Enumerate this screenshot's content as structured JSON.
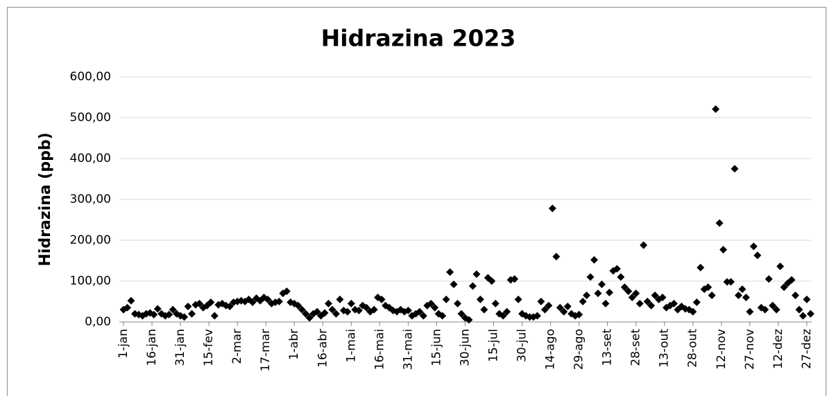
{
  "chart_data": {
    "type": "scatter",
    "title": "Hidrazina 2023",
    "y_label": "Hidrazina (ppb)",
    "color": "#000000",
    "grid": true,
    "x": [
      1,
      3,
      5,
      7,
      9,
      11,
      13,
      15,
      17,
      19,
      21,
      23,
      25,
      27,
      29,
      31,
      33,
      35,
      37,
      39,
      41,
      43,
      45,
      47,
      49,
      51,
      53,
      55,
      57,
      59,
      61,
      63,
      65,
      67,
      69,
      71,
      73,
      75,
      77,
      79,
      81,
      83,
      85,
      87,
      89,
      91,
      93,
      95,
      97,
      99,
      101,
      103,
      105,
      107,
      109,
      111,
      113,
      115,
      117,
      119,
      121,
      123,
      125,
      127,
      129,
      131,
      133,
      135,
      137,
      139,
      141,
      143,
      145,
      147,
      149,
      151,
      153,
      155,
      157,
      159,
      161,
      163,
      165,
      167,
      169,
      171,
      173,
      175,
      177,
      179,
      181,
      183,
      185,
      187,
      189,
      191,
      193,
      195,
      197,
      199,
      201,
      203,
      205,
      207,
      209,
      211,
      213,
      215,
      217,
      219,
      221,
      223,
      225,
      227,
      229,
      231,
      233,
      235,
      237,
      239,
      241,
      243,
      245,
      247,
      249,
      251,
      253,
      255,
      257,
      259,
      261,
      263,
      265,
      267,
      269,
      271,
      273,
      275,
      277,
      279,
      281,
      283,
      285,
      287,
      289,
      291,
      293,
      295,
      297,
      299,
      301,
      303,
      305,
      307,
      309,
      311,
      313,
      315,
      317,
      319,
      321,
      323,
      325,
      327,
      329,
      331,
      333,
      335,
      337,
      339,
      341,
      343,
      345,
      347,
      349,
      351,
      353,
      355,
      357,
      359,
      361,
      363
    ],
    "values": [
      30,
      35,
      52,
      20,
      18,
      15,
      20,
      22,
      18,
      32,
      20,
      15,
      18,
      30,
      20,
      15,
      12,
      38,
      20,
      42,
      45,
      35,
      40,
      48,
      15,
      42,
      45,
      40,
      38,
      48,
      50,
      52,
      50,
      55,
      48,
      58,
      52,
      60,
      55,
      45,
      48,
      50,
      70,
      75,
      48,
      45,
      40,
      30,
      20,
      10,
      20,
      25,
      15,
      22,
      45,
      30,
      20,
      55,
      28,
      25,
      45,
      30,
      28,
      40,
      35,
      25,
      30,
      60,
      55,
      40,
      35,
      28,
      25,
      30,
      25,
      28,
      15,
      20,
      25,
      15,
      40,
      45,
      35,
      20,
      15,
      55,
      122,
      92,
      45,
      20,
      10,
      5,
      88,
      117,
      55,
      30,
      108,
      100,
      45,
      20,
      15,
      25,
      103,
      105,
      55,
      20,
      15,
      12,
      12,
      15,
      50,
      30,
      40,
      278,
      160,
      35,
      25,
      38,
      20,
      15,
      18,
      50,
      65,
      110,
      152,
      70,
      92,
      45,
      72,
      125,
      130,
      110,
      85,
      75,
      60,
      70,
      45,
      188,
      50,
      40,
      65,
      55,
      60,
      35,
      40,
      45,
      30,
      38,
      32,
      30,
      25,
      48,
      133,
      80,
      85,
      65,
      521,
      242,
      177,
      98,
      98,
      375,
      65,
      80,
      60,
      25,
      185,
      163,
      35,
      30,
      105,
      40,
      30,
      136,
      85,
      95,
      103,
      65,
      30,
      15,
      55,
      20
    ],
    "xlim": [
      -1.2,
      363.6
    ],
    "ylim": [
      0,
      600
    ],
    "xticks": [
      {
        "value": 1,
        "label": "1-jan"
      },
      {
        "value": 16,
        "label": "16-jan"
      },
      {
        "value": 31,
        "label": "31-jan"
      },
      {
        "value": 46,
        "label": "15-fev"
      },
      {
        "value": 61,
        "label": "2-mar"
      },
      {
        "value": 76,
        "label": "17-mar"
      },
      {
        "value": 91,
        "label": "1-abr"
      },
      {
        "value": 106,
        "label": "16-abr"
      },
      {
        "value": 121,
        "label": "1-mai"
      },
      {
        "value": 136,
        "label": "16-mai"
      },
      {
        "value": 151,
        "label": "31-mai"
      },
      {
        "value": 166,
        "label": "15-jun"
      },
      {
        "value": 181,
        "label": "30-jun"
      },
      {
        "value": 196,
        "label": "15-jul"
      },
      {
        "value": 211,
        "label": "30-jul"
      },
      {
        "value": 226,
        "label": "14-ago"
      },
      {
        "value": 241,
        "label": "29-ago"
      },
      {
        "value": 256,
        "label": "13-set"
      },
      {
        "value": 271,
        "label": "28-set"
      },
      {
        "value": 286,
        "label": "13-out"
      },
      {
        "value": 301,
        "label": "28-out"
      },
      {
        "value": 316,
        "label": "12-nov"
      },
      {
        "value": 331,
        "label": "27-nov"
      },
      {
        "value": 346,
        "label": "12-dez"
      },
      {
        "value": 361,
        "label": "27-dez"
      }
    ],
    "yticks": [
      {
        "value": 0,
        "label": "0,00"
      },
      {
        "value": 100,
        "label": "100,00"
      },
      {
        "value": 200,
        "label": "200,00"
      },
      {
        "value": 300,
        "label": "300,00"
      },
      {
        "value": 400,
        "label": "400,00"
      },
      {
        "value": 500,
        "label": "500,00"
      },
      {
        "value": 600,
        "label": "600,00"
      }
    ]
  }
}
